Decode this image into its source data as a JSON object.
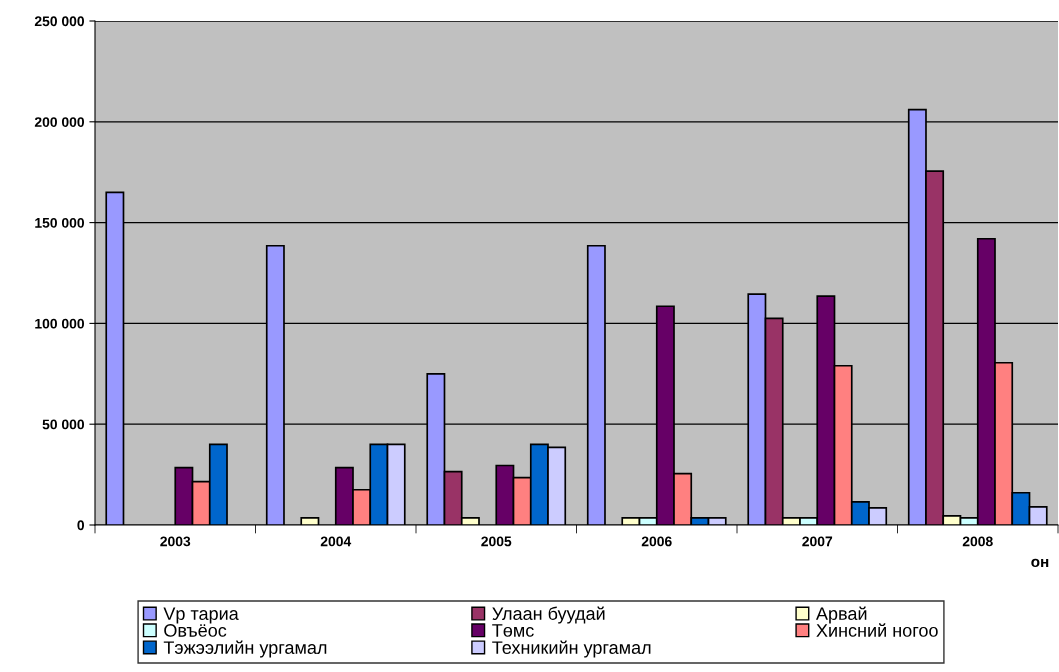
{
  "chart_data": {
    "type": "bar",
    "xlabel": "он",
    "categories": [
      "2003",
      "2004",
      "2005",
      "2006",
      "2007",
      "2008"
    ],
    "series": [
      {
        "name": "Vp тариа",
        "color": "#9999ff",
        "values": [
          165000,
          138500,
          75000,
          138500,
          114500,
          206000
        ]
      },
      {
        "name": "Улаан буудай",
        "color": "#993366",
        "values": [
          null,
          null,
          26500,
          null,
          102500,
          175500
        ]
      },
      {
        "name": "Арвай",
        "color": "#ffffcc",
        "values": [
          null,
          3500,
          3500,
          3500,
          3500,
          4500
        ]
      },
      {
        "name": "Овъёос",
        "color": "#ccffff",
        "values": [
          null,
          null,
          null,
          3500,
          3500,
          3500
        ]
      },
      {
        "name": "Төмс",
        "color": "#660066",
        "values": [
          28500,
          28500,
          29500,
          108500,
          113500,
          142000
        ]
      },
      {
        "name": "Хинсний ногоо",
        "color": "#ff8080",
        "values": [
          21500,
          17500,
          23500,
          25500,
          79000,
          80500
        ]
      },
      {
        "name": "Тэжээлийн ургамал",
        "color": "#0066cc",
        "values": [
          40000,
          40000,
          40000,
          3500,
          11500,
          16000
        ]
      },
      {
        "name": "Техникийн ургамал",
        "color": "#ccccff",
        "values": [
          null,
          40000,
          38500,
          3500,
          8500,
          9000
        ]
      }
    ],
    "ylim": [
      0,
      250000
    ],
    "yticks": [
      {
        "value": 0,
        "label": "0"
      },
      {
        "value": 50000,
        "label": "50 000"
      },
      {
        "value": 100000,
        "label": "100 000"
      },
      {
        "value": 150000,
        "label": "150 000"
      },
      {
        "value": 200000,
        "label": "200 000"
      },
      {
        "value": 250000,
        "label": "250 000"
      }
    ],
    "grid": "y",
    "legend": "bottom"
  }
}
